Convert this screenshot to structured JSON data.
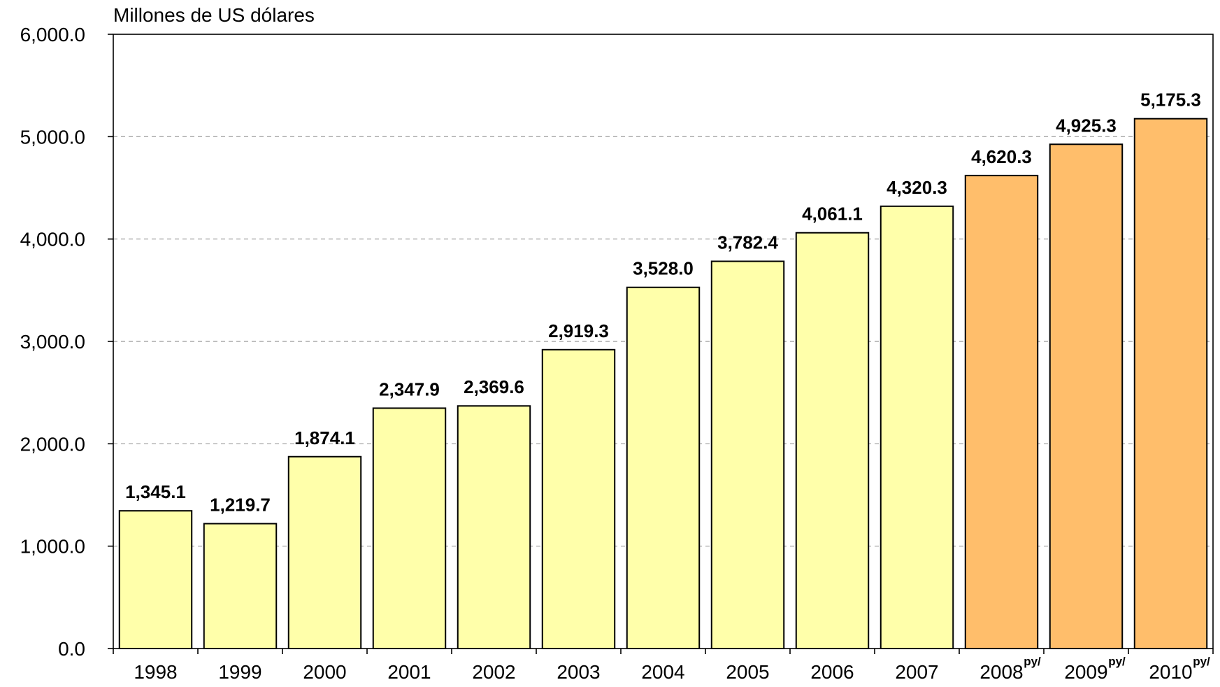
{
  "chart_data": {
    "type": "bar",
    "title": "",
    "ylabel": "Millones de US dólares",
    "xlabel": "",
    "ylim": [
      0,
      6000
    ],
    "yticks": [
      0,
      1000,
      2000,
      3000,
      4000,
      5000,
      6000
    ],
    "ytick_labels": [
      "0.0",
      "1,000.0",
      "2,000.0",
      "3,000.0",
      "4,000.0",
      "5,000.0",
      "6,000.0"
    ],
    "categories": [
      "1998",
      "1999",
      "2000",
      "2001",
      "2002",
      "2003",
      "2004",
      "2005",
      "2006",
      "2007",
      "2008",
      "2009",
      "2010"
    ],
    "category_notes": [
      "",
      "",
      "",
      "",
      "",
      "",
      "",
      "",
      "",
      "",
      "py/",
      "py/",
      "py/"
    ],
    "values": [
      1345.1,
      1219.7,
      1874.1,
      2347.9,
      2369.6,
      2919.3,
      3528.0,
      3782.4,
      4061.1,
      4320.3,
      4620.3,
      4925.3,
      5175.3
    ],
    "value_labels": [
      "1,345.1",
      "1,219.7",
      "1,874.1",
      "2,347.9",
      "2,369.6",
      "2,919.3",
      "3,528.0",
      "3,782.4",
      "4,061.1",
      "4,320.3",
      "4,620.3",
      "4,925.3",
      "5,175.3"
    ],
    "colors": {
      "actual": "#FFFFAA",
      "projected": "#FFBE6B",
      "bar_stroke": "#000000",
      "grid": "#999999"
    },
    "grid": true,
    "legend": "none"
  }
}
